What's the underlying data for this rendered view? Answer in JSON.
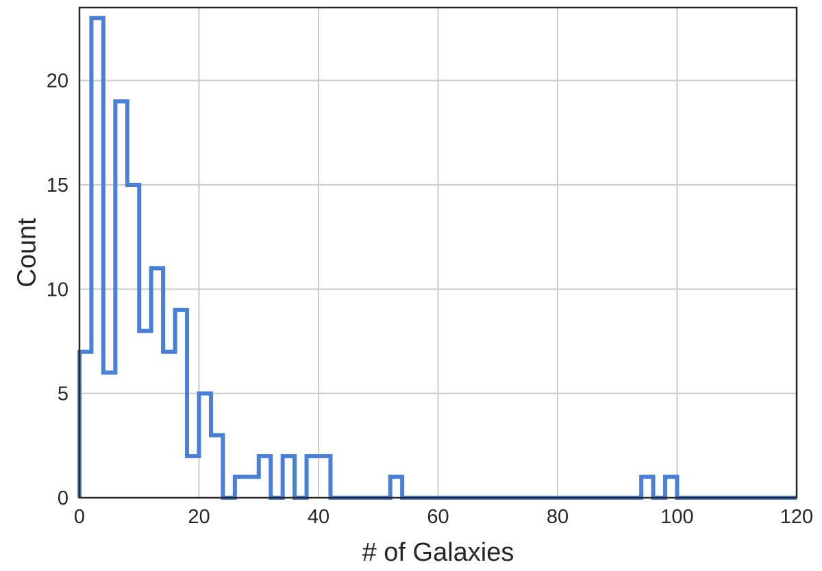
{
  "chart_data": {
    "type": "histogram",
    "histtype": "step",
    "xlabel": "# of Galaxies",
    "ylabel": "Count",
    "xlim": [
      0,
      120
    ],
    "ylim": [
      0,
      23.5
    ],
    "xticks": [
      0,
      20,
      40,
      60,
      80,
      100,
      120
    ],
    "yticks": [
      0,
      5,
      10,
      15,
      20
    ],
    "grid": true,
    "bin_width": 2,
    "bin_edges": [
      0,
      2,
      4,
      6,
      8,
      10,
      12,
      14,
      16,
      18,
      20,
      22,
      24,
      26,
      28,
      30,
      32,
      34,
      36,
      38,
      40,
      42,
      44,
      46,
      48,
      50,
      52,
      54,
      56,
      58,
      60,
      62,
      64,
      66,
      68,
      70,
      72,
      74,
      76,
      78,
      80,
      82,
      84,
      86,
      88,
      90,
      92,
      94,
      96,
      98,
      100,
      102
    ],
    "counts": [
      7,
      23,
      6,
      19,
      15,
      8,
      11,
      7,
      9,
      2,
      5,
      3,
      0,
      1,
      1,
      2,
      0,
      2,
      0,
      2,
      2,
      0,
      0,
      0,
      0,
      0,
      1,
      0,
      0,
      0,
      0,
      0,
      0,
      0,
      0,
      0,
      0,
      0,
      0,
      0,
      0,
      0,
      0,
      0,
      0,
      0,
      0,
      1,
      0,
      1,
      0
    ],
    "color": "#4a7fd8"
  }
}
